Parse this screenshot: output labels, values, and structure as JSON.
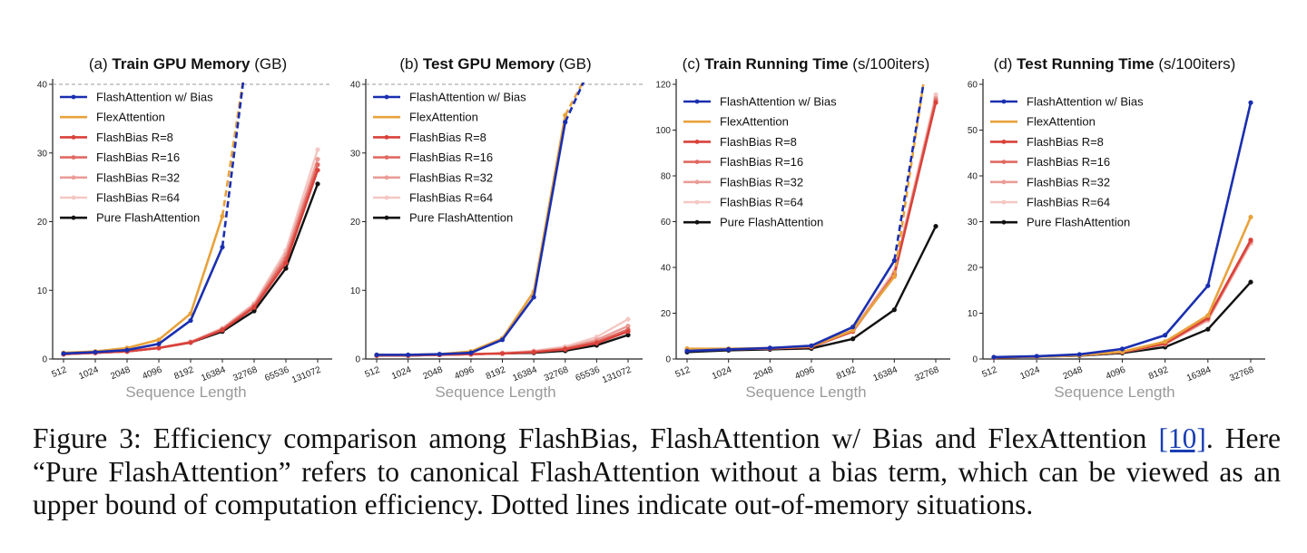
{
  "chart_data": [
    {
      "type": "line",
      "panel": "(a)",
      "title_bold": "Train GPU Memory",
      "title_unit": "(GB)",
      "xlabel": "Sequence Length",
      "ylabel": "",
      "categories": [
        "512",
        "1024",
        "2048",
        "4096",
        "8192",
        "16384",
        "32768",
        "65536",
        "131072"
      ],
      "ylim": [
        0,
        40
      ],
      "yticks": [
        0,
        10,
        20,
        30,
        40
      ],
      "ref_line": 40,
      "legend_position": "top-left",
      "series": [
        {
          "name": "FlashAttention w/ Bias",
          "color": "#1a2fb0",
          "values": [
            0.8,
            1.0,
            1.3,
            2.2,
            5.6,
            16.3,
            null,
            null,
            null
          ],
          "oom": [
            16.3,
            42.0
          ]
        },
        {
          "name": "FlexAttention",
          "color": "#e8a23c",
          "values": [
            0.9,
            1.1,
            1.6,
            2.8,
            6.6,
            20.8,
            null,
            null,
            null
          ],
          "oom": [
            20.8,
            42.0
          ]
        },
        {
          "name": "FlashBias R=8",
          "color": "#d9413a",
          "values": [
            0.7,
            0.9,
            1.1,
            1.6,
            2.4,
            4.2,
            7.5,
            14.0,
            27.5
          ]
        },
        {
          "name": "FlashBias R=16",
          "color": "#e06a62",
          "values": [
            0.7,
            0.9,
            1.1,
            1.6,
            2.4,
            4.3,
            7.7,
            14.6,
            28.3
          ]
        },
        {
          "name": "FlashBias R=32",
          "color": "#ea9c96",
          "values": [
            0.7,
            0.9,
            1.1,
            1.6,
            2.5,
            4.4,
            7.9,
            15.2,
            29.1
          ]
        },
        {
          "name": "FlashBias R=64",
          "color": "#f4c7c3",
          "values": [
            0.7,
            0.9,
            1.1,
            1.7,
            2.5,
            4.5,
            8.1,
            15.8,
            30.5
          ]
        },
        {
          "name": "Pure FlashAttention",
          "color": "#111111",
          "values": [
            0.7,
            0.9,
            1.1,
            1.6,
            2.4,
            4.0,
            7.0,
            13.2,
            25.5
          ]
        }
      ]
    },
    {
      "type": "line",
      "panel": "(b)",
      "title_bold": "Test GPU Memory",
      "title_unit": "(GB)",
      "xlabel": "Sequence Length",
      "ylabel": "",
      "categories": [
        "512",
        "1024",
        "2048",
        "4096",
        "8192",
        "16384",
        "32768",
        "65536",
        "131072"
      ],
      "ylim": [
        0,
        40
      ],
      "yticks": [
        0,
        10,
        20,
        30,
        40
      ],
      "ref_line": 40,
      "legend_position": "top-left",
      "series": [
        {
          "name": "FlashAttention w/ Bias",
          "color": "#1a2fb0",
          "values": [
            0.6,
            0.6,
            0.7,
            0.9,
            2.8,
            9.0,
            34.5,
            null,
            null
          ],
          "oom": [
            34.5,
            41.5
          ]
        },
        {
          "name": "FlexAttention",
          "color": "#e8a23c",
          "values": [
            0.6,
            0.6,
            0.7,
            1.1,
            3.0,
            9.8,
            35.5,
            null,
            null
          ],
          "oom": [
            35.5,
            41.5
          ]
        },
        {
          "name": "FlashBias R=8",
          "color": "#d9413a",
          "values": [
            0.5,
            0.5,
            0.6,
            0.7,
            0.8,
            1.0,
            1.4,
            2.3,
            4.0
          ]
        },
        {
          "name": "FlashBias R=16",
          "color": "#e06a62",
          "values": [
            0.5,
            0.5,
            0.6,
            0.7,
            0.8,
            1.0,
            1.5,
            2.5,
            4.3
          ]
        },
        {
          "name": "FlashBias R=32",
          "color": "#ea9c96",
          "values": [
            0.5,
            0.5,
            0.6,
            0.7,
            0.8,
            1.1,
            1.6,
            2.8,
            4.8
          ]
        },
        {
          "name": "FlashBias R=64",
          "color": "#f4c7c3",
          "values": [
            0.5,
            0.5,
            0.6,
            0.7,
            0.9,
            1.2,
            1.8,
            3.2,
            5.8
          ]
        },
        {
          "name": "Pure FlashAttention",
          "color": "#111111",
          "values": [
            0.5,
            0.5,
            0.6,
            0.7,
            0.8,
            0.9,
            1.2,
            2.0,
            3.5
          ]
        }
      ]
    },
    {
      "type": "line",
      "panel": "(c)",
      "title_bold": "Train Running Time",
      "title_unit": "(s/100iters)",
      "xlabel": "Sequence Length",
      "ylabel": "",
      "categories": [
        "512",
        "1024",
        "2048",
        "4096",
        "8192",
        "16384",
        "32768"
      ],
      "ylim": [
        0,
        120
      ],
      "yticks": [
        0,
        20,
        40,
        60,
        80,
        100,
        120
      ],
      "legend_position": "top-left",
      "series": [
        {
          "name": "FlashAttention w/ Bias",
          "color": "#1a2fb0",
          "values": [
            3.5,
            4.2,
            4.8,
            5.8,
            14.0,
            43.0,
            null
          ],
          "oom": [
            43.0,
            120.0
          ]
        },
        {
          "name": "FlexAttention",
          "color": "#e8a23c",
          "values": [
            4.5,
            4.5,
            4.8,
            5.5,
            12.5,
            36.0,
            null
          ],
          "oom": [
            36.0,
            120.0
          ]
        },
        {
          "name": "FlashBias R=8",
          "color": "#d9413a",
          "values": [
            3.8,
            4.3,
            4.6,
            5.2,
            12.0,
            36.5,
            112.0
          ]
        },
        {
          "name": "FlashBias R=16",
          "color": "#e06a62",
          "values": [
            3.8,
            4.3,
            4.6,
            5.3,
            12.2,
            37.0,
            113.0
          ]
        },
        {
          "name": "FlashBias R=32",
          "color": "#ea9c96",
          "values": [
            3.8,
            4.3,
            4.6,
            5.3,
            12.4,
            37.5,
            114.0
          ]
        },
        {
          "name": "FlashBias R=64",
          "color": "#f4c7c3",
          "values": [
            3.9,
            4.4,
            4.7,
            5.4,
            12.8,
            38.5,
            115.5
          ]
        },
        {
          "name": "Pure FlashAttention",
          "color": "#111111",
          "values": [
            3.0,
            3.8,
            4.2,
            4.6,
            8.8,
            21.5,
            58.0
          ]
        }
      ]
    },
    {
      "type": "line",
      "panel": "(d)",
      "title_bold": "Test Running Time",
      "title_unit": "(s/100iters)",
      "xlabel": "Sequence Length",
      "ylabel": "",
      "categories": [
        "512",
        "1024",
        "2048",
        "4096",
        "8192",
        "16384",
        "32768"
      ],
      "ylim": [
        0,
        60
      ],
      "yticks": [
        0,
        10,
        20,
        30,
        40,
        50,
        60
      ],
      "legend_position": "top-left",
      "series": [
        {
          "name": "FlashAttention w/ Bias",
          "color": "#1a2fb0",
          "values": [
            0.4,
            0.6,
            1.0,
            2.2,
            5.2,
            16.0,
            56.0
          ]
        },
        {
          "name": "FlexAttention",
          "color": "#e8a23c",
          "values": [
            0.4,
            0.5,
            0.8,
            1.6,
            3.8,
            9.5,
            31.0
          ]
        },
        {
          "name": "FlashBias R=8",
          "color": "#d9413a",
          "values": [
            0.3,
            0.5,
            0.8,
            1.5,
            3.4,
            9.0,
            26.0
          ]
        },
        {
          "name": "FlashBias R=16",
          "color": "#e06a62",
          "values": [
            0.3,
            0.5,
            0.8,
            1.5,
            3.3,
            8.8,
            25.8
          ]
        },
        {
          "name": "FlashBias R=32",
          "color": "#ea9c96",
          "values": [
            0.3,
            0.5,
            0.8,
            1.5,
            3.3,
            8.6,
            25.5
          ]
        },
        {
          "name": "FlashBias R=64",
          "color": "#f4c7c3",
          "values": [
            0.3,
            0.5,
            0.8,
            1.5,
            3.2,
            8.4,
            25.2
          ]
        },
        {
          "name": "Pure FlashAttention",
          "color": "#111111",
          "values": [
            0.3,
            0.5,
            0.7,
            1.3,
            2.6,
            6.5,
            16.8
          ]
        }
      ]
    }
  ],
  "caption": {
    "line1_pre": "Figure 3: Efficiency comparison among FlashBias, FlashAttention w/ Bias and FlexAttention ",
    "ref": "[10]",
    "line1_post": ".",
    "rest": "Here “Pure FlashAttention” refers to canonical FlashAttention without a bias term, which can be viewed as an upper bound of computation efficiency. Dotted lines indicate out-of-memory situations."
  }
}
